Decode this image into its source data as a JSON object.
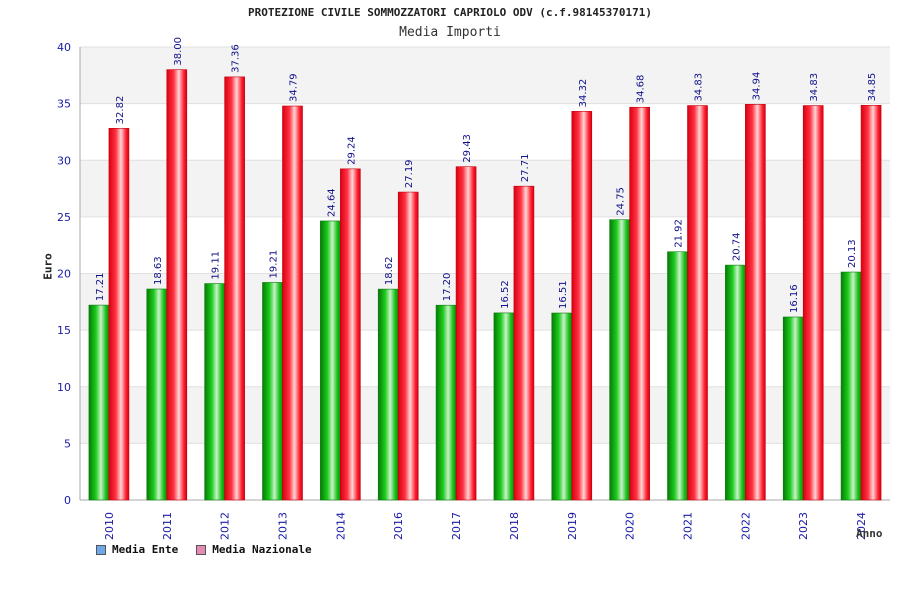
{
  "chart_data": {
    "type": "bar",
    "title": "PROTEZIONE CIVILE SOMMOZZATORI CAPRIOLO ODV (c.f.98145370171)",
    "subtitle": "Media Importi",
    "xlabel": "Anno",
    "ylabel": "Euro",
    "ylim": [
      0,
      40
    ],
    "yticks": [
      0,
      5,
      10,
      15,
      20,
      25,
      30,
      35,
      40
    ],
    "grid": true,
    "legend_position": "bottom-left",
    "categories": [
      "2010",
      "2011",
      "2012",
      "2013",
      "2014",
      "2016",
      "2017",
      "2018",
      "2019",
      "2020",
      "2021",
      "2022",
      "2023",
      "2024"
    ],
    "series": [
      {
        "name": "Media Ente",
        "values": [
          17.21,
          18.63,
          19.11,
          19.21,
          24.64,
          18.62,
          17.2,
          16.52,
          16.51,
          24.75,
          21.92,
          20.74,
          16.16,
          20.13
        ],
        "labels": [
          "17.21",
          "18.63",
          "19.11",
          "19.21",
          "24.64",
          "18.62",
          "17.20",
          "16.52",
          "16.51",
          "24.75",
          "21.92",
          "20.74",
          "16.16",
          "20.13"
        ],
        "color": "#11bb11",
        "legend_color": "#6ea6e8"
      },
      {
        "name": "Media Nazionale",
        "values": [
          32.82,
          38.0,
          37.36,
          34.79,
          29.24,
          27.19,
          29.43,
          27.71,
          34.32,
          34.68,
          34.83,
          34.94,
          34.83,
          34.85
        ],
        "labels": [
          "32.82",
          "38.00",
          "37.36",
          "34.79",
          "29.24",
          "27.19",
          "29.43",
          "27.71",
          "34.32",
          "34.68",
          "34.83",
          "34.94",
          "34.83",
          "34.85"
        ],
        "color": "#ee1122",
        "legend_color": "#e58ab3"
      }
    ]
  }
}
